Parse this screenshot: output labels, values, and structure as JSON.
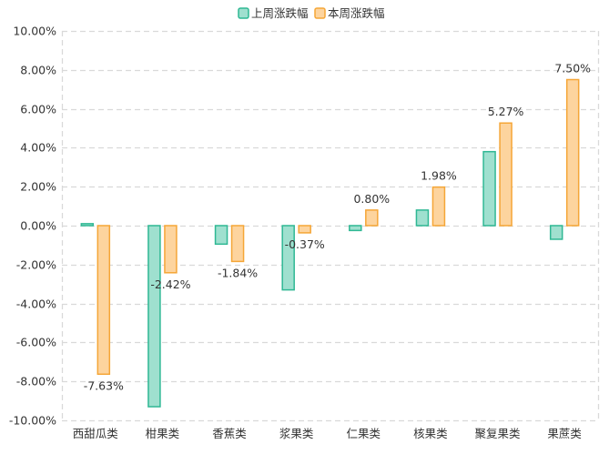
{
  "chart_data": {
    "type": "bar",
    "categories": [
      "西甜瓜类",
      "柑果类",
      "香蕉类",
      "浆果类",
      "仁果类",
      "核果类",
      "聚复果类",
      "果蔗类"
    ],
    "series": [
      {
        "name": "上周涨跌幅",
        "values": [
          0.1,
          -9.3,
          -0.95,
          -3.3,
          -0.25,
          0.8,
          3.8,
          -0.7
        ],
        "show_labels": false
      },
      {
        "name": "本周涨跌幅",
        "values": [
          -7.63,
          -2.42,
          -1.84,
          -0.37,
          0.8,
          1.98,
          5.27,
          7.5
        ],
        "show_labels": true
      }
    ],
    "data_labels": [
      "-7.63%",
      "-2.42%",
      "-1.84%",
      "-0.37%",
      "0.80%",
      "1.98%",
      "5.27%",
      "7.50%"
    ],
    "ylim": [
      -10,
      10
    ],
    "yticks": [
      10,
      8,
      6,
      4,
      2,
      0,
      -2,
      -4,
      -6,
      -8,
      -10
    ],
    "ytick_labels": [
      "10.00%",
      "8.00%",
      "6.00%",
      "4.00%",
      "2.00%",
      "0.00%",
      "-2.00%",
      "-4.00%",
      "-6.00%",
      "-8.00%",
      "-10.00%"
    ],
    "grid": "dashed",
    "legend_position": "top-center",
    "colors": {
      "series_fill": [
        "#9fe0cf",
        "#fdd49e"
      ],
      "series_stroke": [
        "#2fb894",
        "#f5a637"
      ],
      "axis": "#d9d9d9",
      "text": "#333333"
    }
  }
}
